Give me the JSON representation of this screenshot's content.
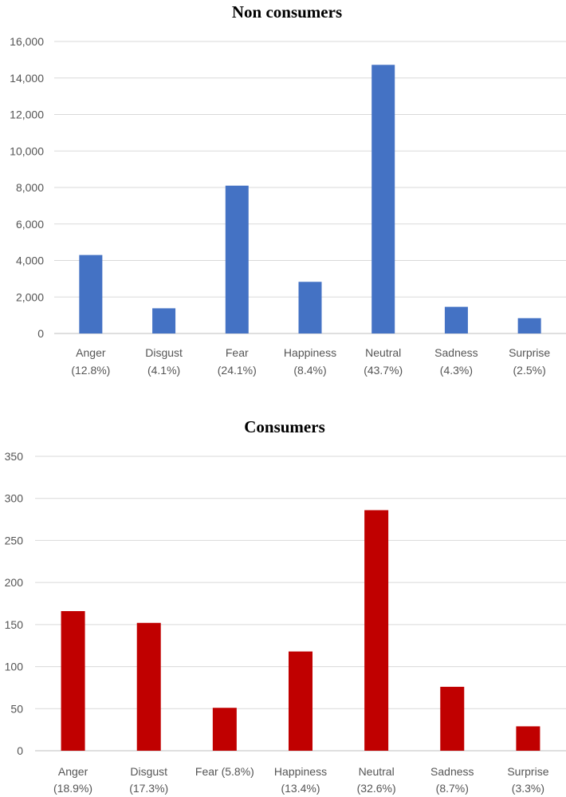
{
  "chart_data": [
    {
      "type": "bar",
      "title": "Non consumers",
      "categories": [
        "Anger",
        "Disgust",
        "Fear",
        "Happiness",
        "Neutral",
        "Sadness",
        "Surprise"
      ],
      "category_sublabels": [
        "(12.8%)",
        "(4.1%)",
        "(24.1%)",
        "(8.4%)",
        "(43.7%)",
        "(4.3%)",
        "(2.5%)"
      ],
      "values": [
        4300,
        1380,
        8100,
        2830,
        14720,
        1460,
        840
      ],
      "ylim": [
        0,
        16000
      ],
      "yticks": [
        0,
        2000,
        4000,
        6000,
        8000,
        10000,
        12000,
        14000,
        16000
      ],
      "ytick_labels": [
        "0",
        "2,000",
        "4,000",
        "6,000",
        "8,000",
        "10,000",
        "12,000",
        "14,000",
        "16,000"
      ],
      "color": "#4472C4",
      "xlabel": "",
      "ylabel": "",
      "grid": true
    },
    {
      "type": "bar",
      "title": "Consumers",
      "categories": [
        "Anger",
        "Disgust",
        "Fear (5.8%)",
        "Happiness",
        "Neutral",
        "Sadness",
        "Surprise"
      ],
      "category_sublabels": [
        "(18.9%)",
        "(17.3%)",
        "",
        "(13.4%)",
        "(32.6%)",
        "(8.7%)",
        "(3.3%)"
      ],
      "values": [
        166,
        152,
        51,
        118,
        286,
        76,
        29
      ],
      "ylim": [
        0,
        350
      ],
      "yticks": [
        0,
        50,
        100,
        150,
        200,
        250,
        300,
        350
      ],
      "ytick_labels": [
        "0",
        "50",
        "100",
        "150",
        "200",
        "250",
        "300",
        "350"
      ],
      "color": "#C00000",
      "xlabel": "",
      "ylabel": "",
      "grid": true
    }
  ]
}
